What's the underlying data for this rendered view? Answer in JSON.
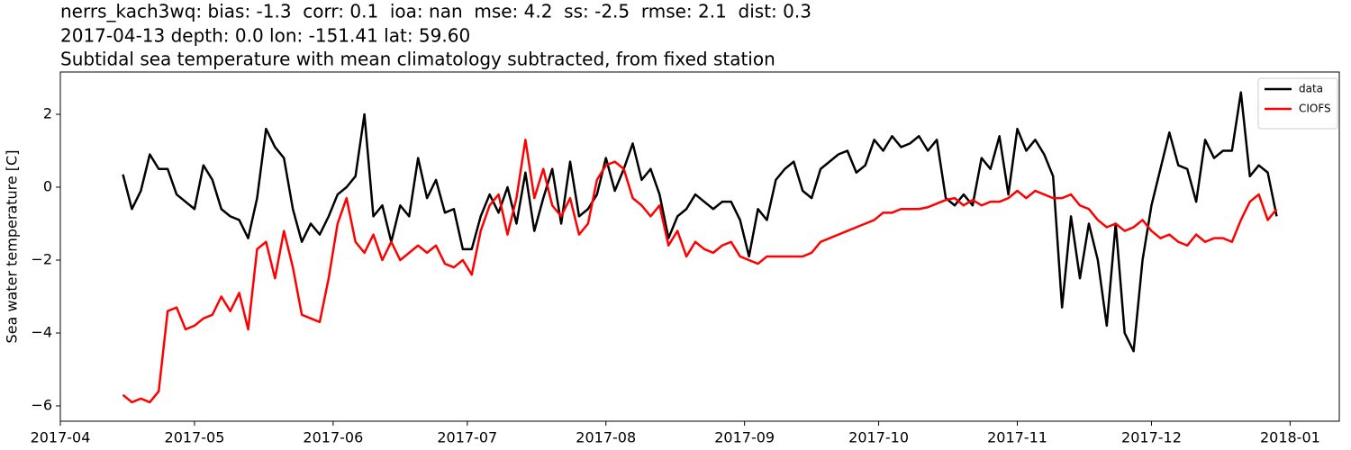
{
  "chart_data": {
    "type": "line",
    "title": [
      "nerrs_kach3wq: bias: -1.3  corr: 0.1  ioa: nan  mse: 4.2  ss: -2.5  rmse: 2.1  dist: 0.3",
      "2017-04-13 depth: 0.0 lon: -151.41 lat: 59.60",
      "Subtidal sea temperature with mean climatology subtracted, from fixed station"
    ],
    "y_label": "Sea water temperature [C]",
    "legend": "upper right",
    "grid": false,
    "xlim": [
      "2017-04-01",
      "2018-01-12"
    ],
    "xticks": [
      "2017-04",
      "2017-05",
      "2017-06",
      "2017-07",
      "2017-08",
      "2017-09",
      "2017-10",
      "2017-11",
      "2017-12",
      "2018-01"
    ],
    "ylim": [
      -6.42,
      3.16
    ],
    "yticks": [
      {
        "value": -6,
        "label": "−6"
      },
      {
        "value": -4,
        "label": "−4"
      },
      {
        "value": -2,
        "label": "−2"
      },
      {
        "value": 0,
        "label": "0"
      },
      {
        "value": 2,
        "label": "2"
      }
    ],
    "x": [
      "2017-04-15",
      "2017-04-17",
      "2017-04-19",
      "2017-04-21",
      "2017-04-23",
      "2017-04-25",
      "2017-04-27",
      "2017-04-29",
      "2017-05-01",
      "2017-05-03",
      "2017-05-05",
      "2017-05-07",
      "2017-05-09",
      "2017-05-11",
      "2017-05-13",
      "2017-05-15",
      "2017-05-17",
      "2017-05-19",
      "2017-05-21",
      "2017-05-23",
      "2017-05-25",
      "2017-05-27",
      "2017-05-29",
      "2017-05-31",
      "2017-06-02",
      "2017-06-04",
      "2017-06-06",
      "2017-06-08",
      "2017-06-10",
      "2017-06-12",
      "2017-06-14",
      "2017-06-16",
      "2017-06-18",
      "2017-06-20",
      "2017-06-22",
      "2017-06-24",
      "2017-06-26",
      "2017-06-28",
      "2017-06-30",
      "2017-07-02",
      "2017-07-04",
      "2017-07-06",
      "2017-07-08",
      "2017-07-10",
      "2017-07-12",
      "2017-07-14",
      "2017-07-16",
      "2017-07-18",
      "2017-07-20",
      "2017-07-22",
      "2017-07-24",
      "2017-07-26",
      "2017-07-28",
      "2017-07-30",
      "2017-08-01",
      "2017-08-03",
      "2017-08-05",
      "2017-08-07",
      "2017-08-09",
      "2017-08-11",
      "2017-08-13",
      "2017-08-15",
      "2017-08-17",
      "2017-08-19",
      "2017-08-21",
      "2017-08-23",
      "2017-08-25",
      "2017-08-27",
      "2017-08-29",
      "2017-08-31",
      "2017-09-02",
      "2017-09-04",
      "2017-09-06",
      "2017-09-08",
      "2017-09-10",
      "2017-09-12",
      "2017-09-14",
      "2017-09-16",
      "2017-09-18",
      "2017-09-20",
      "2017-09-22",
      "2017-09-24",
      "2017-09-26",
      "2017-09-28",
      "2017-09-30",
      "2017-10-02",
      "2017-10-04",
      "2017-10-06",
      "2017-10-08",
      "2017-10-10",
      "2017-10-12",
      "2017-10-14",
      "2017-10-16",
      "2017-10-18",
      "2017-10-20",
      "2017-10-22",
      "2017-10-24",
      "2017-10-26",
      "2017-10-28",
      "2017-10-30",
      "2017-11-01",
      "2017-11-03",
      "2017-11-05",
      "2017-11-07",
      "2017-11-09",
      "2017-11-11",
      "2017-11-13",
      "2017-11-15",
      "2017-11-17",
      "2017-11-19",
      "2017-11-21",
      "2017-11-23",
      "2017-11-25",
      "2017-11-27",
      "2017-11-29",
      "2017-12-01",
      "2017-12-03",
      "2017-12-05",
      "2017-12-07",
      "2017-12-09",
      "2017-12-11",
      "2017-12-13",
      "2017-12-15",
      "2017-12-17",
      "2017-12-19",
      "2017-12-21",
      "2017-12-23",
      "2017-12-25",
      "2017-12-27",
      "2017-12-29"
    ],
    "series": [
      {
        "name": "data",
        "color": "#000000",
        "values": [
          0.35,
          -0.6,
          -0.1,
          0.9,
          0.5,
          0.5,
          -0.2,
          -0.4,
          -0.6,
          0.6,
          0.2,
          -0.6,
          -0.8,
          -0.9,
          -1.4,
          -0.3,
          1.6,
          1.1,
          0.8,
          -0.6,
          -1.5,
          -1.0,
          -1.3,
          -0.8,
          -0.2,
          0.0,
          0.3,
          2.0,
          -0.8,
          -0.5,
          -1.5,
          -0.5,
          -0.8,
          0.8,
          -0.3,
          0.2,
          -0.7,
          -0.6,
          -1.7,
          -1.7,
          -0.8,
          -0.2,
          -0.7,
          0.0,
          -1.0,
          0.4,
          -1.2,
          -0.3,
          0.5,
          -1.0,
          0.7,
          -0.8,
          -0.6,
          -0.2,
          0.8,
          -0.1,
          0.5,
          1.2,
          0.2,
          0.5,
          -0.2,
          -1.4,
          -0.8,
          -0.6,
          -0.2,
          -0.4,
          -0.6,
          -0.4,
          -0.4,
          -0.9,
          -1.9,
          -0.6,
          -0.9,
          0.2,
          0.5,
          0.7,
          -0.1,
          -0.3,
          0.5,
          0.7,
          0.9,
          1.0,
          0.4,
          0.6,
          1.3,
          1.0,
          1.4,
          1.1,
          1.2,
          1.4,
          1.0,
          1.3,
          -0.3,
          -0.5,
          -0.2,
          -0.5,
          0.8,
          0.5,
          1.4,
          -0.2,
          1.6,
          1.0,
          1.3,
          0.9,
          0.3,
          -3.3,
          -0.8,
          -2.5,
          -1.0,
          -2.0,
          -3.8,
          -1.0,
          -4.0,
          -4.5,
          -2.0,
          -0.5,
          0.5,
          1.5,
          0.6,
          0.5,
          -0.4,
          1.3,
          0.8,
          1.0,
          1.0,
          2.6,
          0.3,
          0.6,
          0.4,
          -0.8
        ]
      },
      {
        "name": "CIOFS",
        "color": "#ff0000",
        "values": [
          -5.7,
          -5.9,
          -5.8,
          -5.9,
          -5.6,
          -3.4,
          -3.3,
          -3.9,
          -3.8,
          -3.6,
          -3.5,
          -3.0,
          -3.4,
          -2.9,
          -3.9,
          -1.7,
          -1.5,
          -2.5,
          -1.2,
          -2.2,
          -3.5,
          -3.6,
          -3.7,
          -2.5,
          -1.0,
          -0.3,
          -1.5,
          -1.8,
          -1.3,
          -2.0,
          -1.5,
          -2.0,
          -1.8,
          -1.6,
          -1.8,
          -1.6,
          -2.1,
          -2.2,
          -2.0,
          -2.4,
          -1.2,
          -0.5,
          -0.2,
          -1.3,
          -0.3,
          1.3,
          -0.3,
          0.5,
          -0.5,
          -0.8,
          -0.3,
          -1.3,
          -1.0,
          0.2,
          0.6,
          0.7,
          0.5,
          -0.3,
          -0.5,
          -0.8,
          -0.5,
          -1.6,
          -1.2,
          -1.9,
          -1.5,
          -1.7,
          -1.8,
          -1.6,
          -1.5,
          -1.9,
          -2.0,
          -2.1,
          -1.9,
          -1.9,
          -1.9,
          -1.9,
          -1.9,
          -1.8,
          -1.5,
          -1.4,
          -1.3,
          -1.2,
          -1.1,
          -1.0,
          -0.9,
          -0.7,
          -0.7,
          -0.6,
          -0.6,
          -0.6,
          -0.55,
          -0.45,
          -0.35,
          -0.3,
          -0.5,
          -0.35,
          -0.5,
          -0.4,
          -0.4,
          -0.3,
          -0.1,
          -0.3,
          -0.1,
          -0.2,
          -0.3,
          -0.3,
          -0.2,
          -0.5,
          -0.6,
          -0.9,
          -1.1,
          -1.0,
          -1.2,
          -1.1,
          -0.9,
          -1.2,
          -1.4,
          -1.3,
          -1.5,
          -1.6,
          -1.3,
          -1.5,
          -1.4,
          -1.4,
          -1.5,
          -0.9,
          -0.4,
          -0.2,
          -0.9,
          -0.6
        ]
      }
    ]
  }
}
